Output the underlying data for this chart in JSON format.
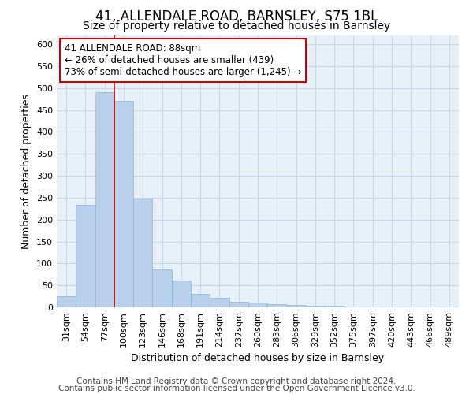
{
  "title_line1": "41, ALLENDALE ROAD, BARNSLEY, S75 1BL",
  "title_line2": "Size of property relative to detached houses in Barnsley",
  "xlabel": "Distribution of detached houses by size in Barnsley",
  "ylabel": "Number of detached properties",
  "categories": [
    "31sqm",
    "54sqm",
    "77sqm",
    "100sqm",
    "123sqm",
    "146sqm",
    "168sqm",
    "191sqm",
    "214sqm",
    "237sqm",
    "260sqm",
    "283sqm",
    "306sqm",
    "329sqm",
    "352sqm",
    "375sqm",
    "397sqm",
    "420sqm",
    "443sqm",
    "466sqm",
    "489sqm"
  ],
  "values": [
    25,
    233,
    491,
    470,
    248,
    87,
    62,
    30,
    22,
    13,
    10,
    7,
    5,
    4,
    4,
    2,
    2,
    2,
    1,
    1,
    1
  ],
  "bar_color": "#b8d0ea",
  "bar_edge_color": "#8ab4d6",
  "marker_line_color": "#cc0000",
  "annotation_text": "41 ALLENDALE ROAD: 88sqm\n← 26% of detached houses are smaller (439)\n73% of semi-detached houses are larger (1,245) →",
  "annotation_box_color": "#ffffff",
  "annotation_box_edge_color": "#cc0000",
  "ylim": [
    0,
    620
  ],
  "yticks": [
    0,
    50,
    100,
    150,
    200,
    250,
    300,
    350,
    400,
    450,
    500,
    550,
    600
  ],
  "grid_color": "#c8d8e8",
  "background_color": "#e8f0f8",
  "footer_line1": "Contains HM Land Registry data © Crown copyright and database right 2024.",
  "footer_line2": "Contains public sector information licensed under the Open Government Licence v3.0.",
  "title_fontsize": 12,
  "subtitle_fontsize": 10,
  "axis_label_fontsize": 9,
  "tick_fontsize": 8,
  "footer_fontsize": 7.5,
  "annotation_fontsize": 8.5
}
